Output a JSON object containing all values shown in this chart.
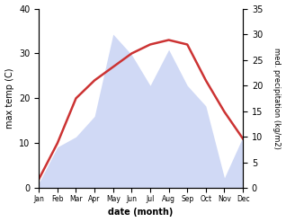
{
  "months": [
    "Jan",
    "Feb",
    "Mar",
    "Apr",
    "May",
    "Jun",
    "Jul",
    "Aug",
    "Sep",
    "Oct",
    "Nov",
    "Dec"
  ],
  "temperature": [
    2,
    10,
    20,
    24,
    27,
    30,
    32,
    33,
    32,
    24,
    17,
    11
  ],
  "precipitation": [
    1,
    8,
    10,
    14,
    30,
    26,
    20,
    27,
    20,
    16,
    2,
    10
  ],
  "temp_color": "#cc3333",
  "precip_color": "#aabbee",
  "precip_fill_alpha": 0.55,
  "xlabel": "date (month)",
  "ylabel_left": "max temp (C)",
  "ylabel_right": "med. precipitation (kg/m2)",
  "ylim_left": [
    0,
    40
  ],
  "ylim_right": [
    0,
    35
  ],
  "yticks_left": [
    0,
    10,
    20,
    30,
    40
  ],
  "yticks_right": [
    0,
    5,
    10,
    15,
    20,
    25,
    30,
    35
  ],
  "figsize": [
    3.18,
    2.47
  ],
  "dpi": 100,
  "line_width": 1.8
}
